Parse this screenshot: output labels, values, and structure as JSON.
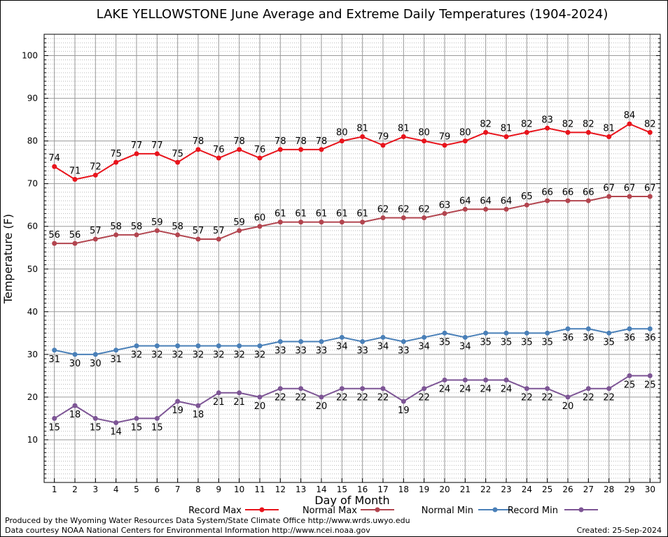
{
  "chart_data": {
    "type": "line",
    "title": "LAKE YELLOWSTONE June Average and Extreme Daily Temperatures (1904-2024)",
    "xlabel": "Day of Month",
    "ylabel": "Temperature (F)",
    "x": [
      1,
      2,
      3,
      4,
      5,
      6,
      7,
      8,
      9,
      10,
      11,
      12,
      13,
      14,
      15,
      16,
      17,
      18,
      19,
      20,
      21,
      22,
      23,
      24,
      25,
      26,
      27,
      28,
      29,
      30
    ],
    "y_ticks": [
      10,
      20,
      30,
      40,
      50,
      60,
      70,
      80,
      90,
      100
    ],
    "ylim": [
      0,
      105
    ],
    "xlim": [
      0.5,
      30.5
    ],
    "grid": true,
    "legend_position": "bottom",
    "series": [
      {
        "name": "Record Max",
        "color": "#e8141c",
        "label_position": "above",
        "values": [
          74,
          71,
          72,
          75,
          77,
          77,
          75,
          78,
          76,
          78,
          76,
          78,
          78,
          78,
          80,
          81,
          79,
          81,
          80,
          79,
          80,
          82,
          81,
          82,
          83,
          82,
          82,
          81,
          84,
          82
        ]
      },
      {
        "name": "Normal Max",
        "color": "#b2454f",
        "label_position": "above",
        "values": [
          56,
          56,
          57,
          58,
          58,
          59,
          58,
          57,
          57,
          59,
          60,
          61,
          61,
          61,
          61,
          61,
          62,
          62,
          62,
          63,
          64,
          64,
          64,
          65,
          66,
          66,
          66,
          67,
          67,
          67
        ]
      },
      {
        "name": "Normal Min",
        "color": "#4a80b8",
        "label_position": "below",
        "values": [
          31,
          30,
          30,
          31,
          32,
          32,
          32,
          32,
          32,
          32,
          32,
          33,
          33,
          33,
          34,
          33,
          34,
          33,
          34,
          35,
          34,
          35,
          35,
          35,
          35,
          36,
          36,
          35,
          36,
          36
        ]
      },
      {
        "name": "Record Min",
        "color": "#7d5595",
        "label_position": "below",
        "values": [
          15,
          18,
          15,
          14,
          15,
          15,
          19,
          18,
          21,
          21,
          20,
          22,
          22,
          20,
          22,
          22,
          22,
          19,
          22,
          24,
          24,
          24,
          24,
          22,
          22,
          20,
          22,
          22,
          25,
          25
        ]
      }
    ]
  },
  "footer": {
    "produced_by": "Produced by the Wyoming Water Resources Data System/State Climate Office http://www.wrds.uwyo.edu",
    "data_courtesy": "Data courtesy NOAA National Centers for Environmental Information http://www.ncei.noaa.gov",
    "created": "Created:  25-Sep-2024"
  }
}
